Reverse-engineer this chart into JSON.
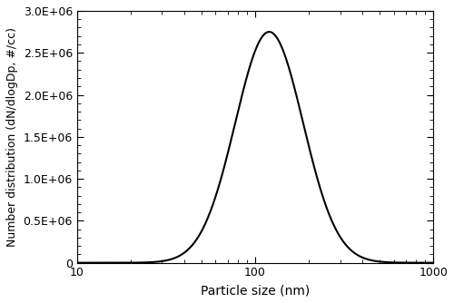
{
  "xmin": 10,
  "xmax": 1000,
  "ymin": 0,
  "ymax": 3000000.0,
  "yticks": [
    0,
    500000.0,
    1000000.0,
    1500000.0,
    2000000.0,
    2500000.0,
    3000000.0
  ],
  "ytick_labels": [
    "0",
    "0.5E+06",
    "1.0E+06",
    "1.5E+06",
    "2.0E+06",
    "2.5E+06",
    "3.0E+06"
  ],
  "xlabel": "Particle size (nm)",
  "ylabel": "Number distribution (dN/dlogDp, #/cc)",
  "line_color": "#000000",
  "line_width": 1.5,
  "mode_nm": 120,
  "peak_value": 2750000.0,
  "sigma_g": 1.55,
  "background_color": "#ffffff",
  "figsize": [
    5.0,
    3.34
  ],
  "dpi": 100
}
